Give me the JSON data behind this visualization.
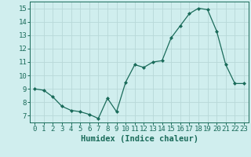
{
  "x": [
    0,
    1,
    2,
    3,
    4,
    5,
    6,
    7,
    8,
    9,
    10,
    11,
    12,
    13,
    14,
    15,
    16,
    17,
    18,
    19,
    20,
    21,
    22,
    23
  ],
  "y": [
    9.0,
    8.9,
    8.4,
    7.7,
    7.4,
    7.3,
    7.1,
    6.8,
    8.3,
    7.3,
    9.5,
    10.8,
    10.6,
    11.0,
    11.1,
    12.8,
    13.7,
    14.6,
    15.0,
    14.9,
    13.3,
    10.8,
    9.4,
    9.4
  ],
  "xlabel": "Humidex (Indice chaleur)",
  "xlim": [
    -0.5,
    23.5
  ],
  "ylim": [
    6.5,
    15.5
  ],
  "yticks": [
    7,
    8,
    9,
    10,
    11,
    12,
    13,
    14,
    15
  ],
  "xticks": [
    0,
    1,
    2,
    3,
    4,
    5,
    6,
    7,
    8,
    9,
    10,
    11,
    12,
    13,
    14,
    15,
    16,
    17,
    18,
    19,
    20,
    21,
    22,
    23
  ],
  "line_color": "#1a6b5a",
  "marker_color": "#1a6b5a",
  "bg_color": "#d0eeee",
  "grid_color": "#b8d8d8",
  "xlabel_fontsize": 7.5,
  "tick_fontsize": 6.5
}
